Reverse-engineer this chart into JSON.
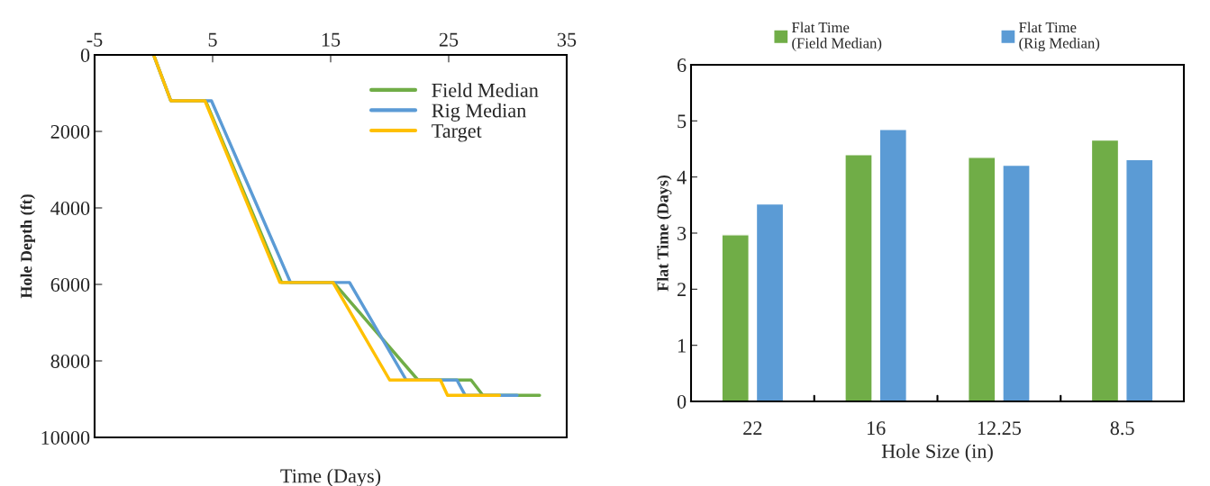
{
  "chart_data": [
    {
      "type": "line",
      "xlabel": "Time (Days)",
      "ylabel": "Hole Depth (ft)",
      "xlim": [
        -5,
        35
      ],
      "xticks": [
        -5,
        5,
        15,
        25,
        35
      ],
      "ylim": [
        10000,
        0
      ],
      "yticks": [
        0,
        2000,
        4000,
        6000,
        8000,
        10000
      ],
      "grid": false,
      "legend": "top right",
      "marker": "none",
      "line_style": "solid",
      "series": [
        {
          "name": "Field Median",
          "color": "#70ad47",
          "x": [
            0,
            1.46,
            4.4,
            10.85,
            15.25,
            22.4,
            26.9,
            27.9,
            32.7
          ],
          "values": [
            0,
            1200,
            1200,
            5950,
            5950,
            8500,
            8500,
            8900,
            8900
          ]
        },
        {
          "name": "Rig Median",
          "color": "#5b9bd5",
          "x": [
            0,
            1.46,
            4.9,
            11.6,
            16.6,
            21.4,
            25.7,
            26.4,
            30.8
          ],
          "values": [
            0,
            1200,
            1200,
            5950,
            5950,
            8500,
            8500,
            8900,
            8900
          ]
        },
        {
          "name": "Target",
          "color": "#ffc000",
          "x": [
            0,
            1.46,
            4.35,
            10.7,
            15.2,
            20.0,
            24.3,
            24.9,
            29.3
          ],
          "values": [
            0,
            1200,
            1200,
            5950,
            5950,
            8500,
            8500,
            8900,
            8900
          ]
        }
      ]
    },
    {
      "type": "bar",
      "xlabel": "Hole Size (in)",
      "ylabel": "Flat Time (Days)",
      "categories": [
        "22",
        "16",
        "12.25",
        "8.5"
      ],
      "ylim": [
        0,
        6
      ],
      "yticks": [
        0,
        1,
        2,
        3,
        4,
        5,
        6
      ],
      "grid": false,
      "legend": "top",
      "series": [
        {
          "name": "Flat Time\n(Field Median)",
          "color": "#70ad47",
          "values": [
            2.97,
            4.4,
            4.35,
            4.66
          ]
        },
        {
          "name": "Flat Time\n(Rig Median)",
          "color": "#5b9bd5",
          "values": [
            3.52,
            4.85,
            4.21,
            4.31
          ]
        }
      ]
    }
  ]
}
